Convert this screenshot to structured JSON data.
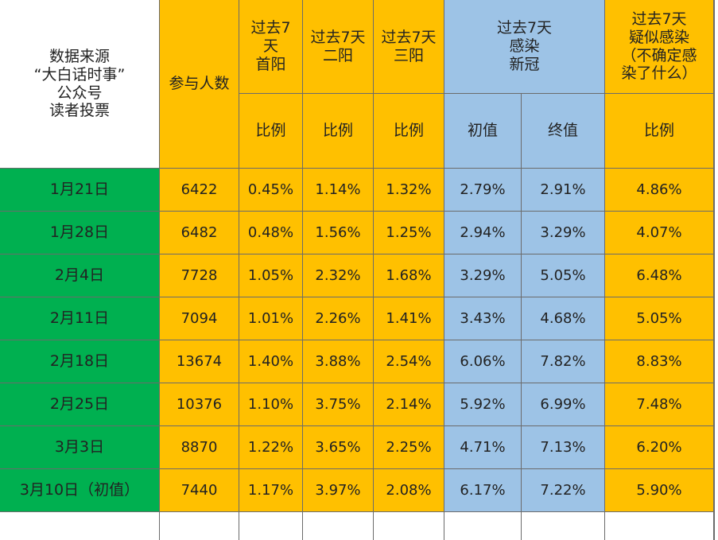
{
  "header": {
    "source_lines": [
      "数据来源",
      "“大白话时事”",
      "公众号",
      "读者投票"
    ],
    "participants": "参与人数",
    "first_positive_lines": [
      "过去7",
      "天",
      "首阳"
    ],
    "second_positive_lines": [
      "过去7天",
      "二阳"
    ],
    "third_positive_lines": [
      "过去7天",
      "三阳"
    ],
    "covid_lines": [
      "过去7天",
      "感染",
      "新冠"
    ],
    "suspected_lines": [
      "过去7天",
      "疑似感染",
      "（不确定感",
      "染了什么）"
    ],
    "ratio": "比例",
    "initial": "初值",
    "final": "终值"
  },
  "rows": [
    {
      "date": "1月21日",
      "participants": "6422",
      "first": "0.45%",
      "second": "1.14%",
      "third": "1.32%",
      "covid_initial": "2.79%",
      "covid_final": "2.91%",
      "suspected": "4.86%"
    },
    {
      "date": "1月28日",
      "participants": "6482",
      "first": "0.48%",
      "second": "1.56%",
      "third": "1.25%",
      "covid_initial": "2.94%",
      "covid_final": "3.29%",
      "suspected": "4.07%"
    },
    {
      "date": "2月4日",
      "participants": "7728",
      "first": "1.05%",
      "second": "2.32%",
      "third": "1.68%",
      "covid_initial": "3.29%",
      "covid_final": "5.05%",
      "suspected": "6.48%"
    },
    {
      "date": "2月11日",
      "participants": "7094",
      "first": "1.01%",
      "second": "2.26%",
      "third": "1.41%",
      "covid_initial": "3.43%",
      "covid_final": "4.68%",
      "suspected": "5.05%"
    },
    {
      "date": "2月18日",
      "participants": "13674",
      "first": "1.40%",
      "second": "3.88%",
      "third": "2.54%",
      "covid_initial": "6.06%",
      "covid_final": "7.82%",
      "suspected": "8.83%"
    },
    {
      "date": "2月25日",
      "participants": "10376",
      "first": "1.10%",
      "second": "3.75%",
      "third": "2.14%",
      "covid_initial": "5.92%",
      "covid_final": "6.99%",
      "suspected": "7.48%"
    },
    {
      "date": "3月3日",
      "participants": "8870",
      "first": "1.22%",
      "second": "3.65%",
      "third": "2.25%",
      "covid_initial": "4.71%",
      "covid_final": "7.13%",
      "suspected": "6.20%"
    },
    {
      "date": "3月10日（初值）",
      "participants": "7440",
      "first": "1.17%",
      "second": "3.97%",
      "third": "2.08%",
      "covid_initial": "6.17%",
      "covid_final": "7.22%",
      "suspected": "5.90%"
    }
  ],
  "colors": {
    "yellow": "#ffc000",
    "blue": "#9dc3e6",
    "green": "#00b050",
    "grid": "#6b6b6b"
  }
}
